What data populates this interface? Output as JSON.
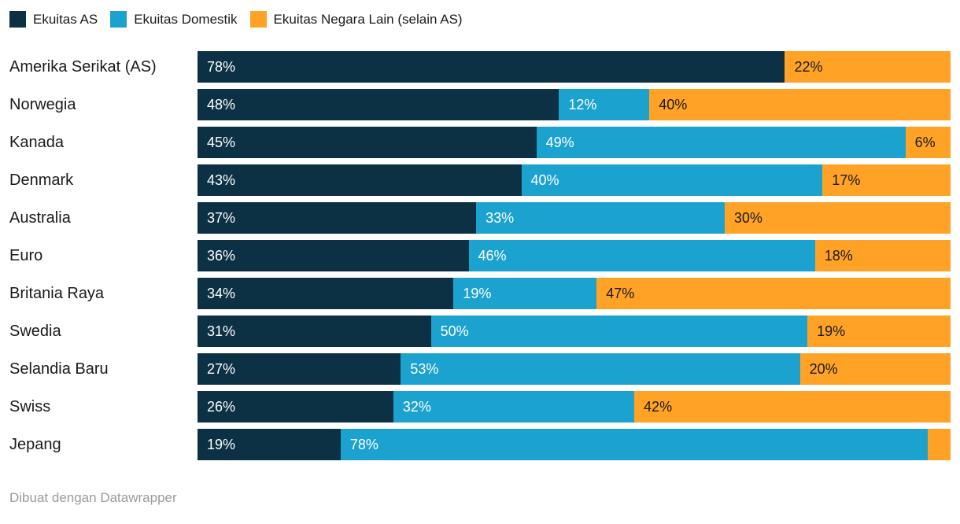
{
  "chart_data": {
    "type": "bar",
    "stacked": true,
    "orientation": "horizontal",
    "categories": [
      "Amerika Serikat (AS)",
      "Norwegia",
      "Kanada",
      "Denmark",
      "Australia",
      "Euro",
      "Britania Raya",
      "Swedia",
      "Selandia Baru",
      "Swiss",
      "Jepang"
    ],
    "series": [
      {
        "name": "Ekuitas AS",
        "color": "#0c3144",
        "label_color": "#ffffff",
        "values": [
          78,
          48,
          45,
          43,
          37,
          36,
          34,
          31,
          27,
          26,
          19
        ]
      },
      {
        "name": "Ekuitas Domestik",
        "color": "#1ca2cf",
        "label_color": "#ffffff",
        "values": [
          0,
          12,
          49,
          40,
          33,
          46,
          19,
          50,
          53,
          32,
          78
        ]
      },
      {
        "name": "Ekuitas Negara Lain (selain AS)",
        "color": "#ffa226",
        "label_color": "#1a1a1a",
        "values": [
          22,
          40,
          6,
          17,
          30,
          18,
          47,
          19,
          20,
          42,
          3
        ]
      }
    ],
    "xlim": [
      0,
      100
    ],
    "value_suffix": "%",
    "label_min_value": 6,
    "legend_position": "top",
    "grid": false
  },
  "footer": {
    "credit": "Dibuat dengan Datawrapper"
  }
}
